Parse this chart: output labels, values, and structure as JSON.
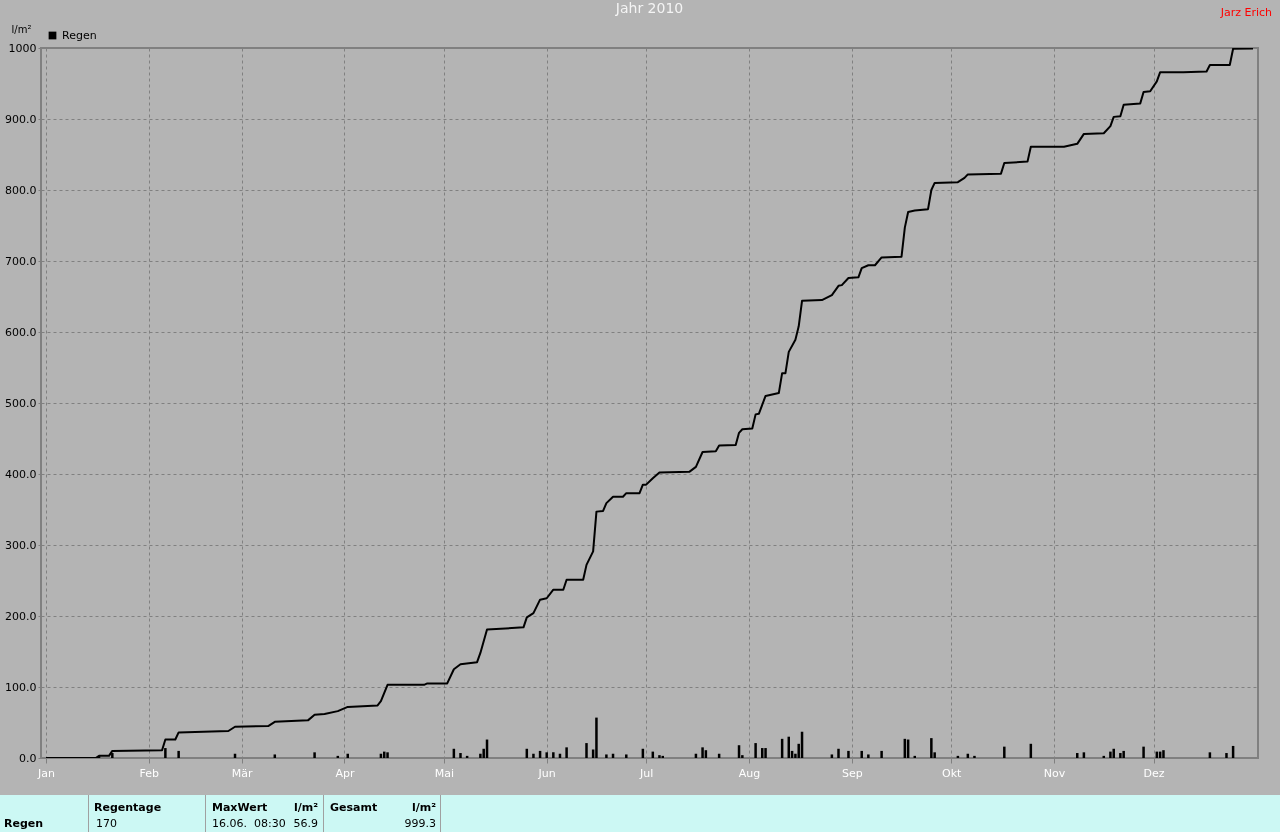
{
  "chart_data": {
    "type": "line",
    "title": "Jahr 2010",
    "ylabel": "l/m²",
    "xlim": [
      "2010-01-01",
      "2010-12-31"
    ],
    "ylim": [
      0,
      1000
    ],
    "xticks": [
      {
        "value": "2010-01-01",
        "label": "Jan"
      },
      {
        "value": "2010-02-01",
        "label": "Feb"
      },
      {
        "value": "2010-03-01",
        "label": "Mär"
      },
      {
        "value": "2010-04-01",
        "label": "Apr"
      },
      {
        "value": "2010-05-01",
        "label": "Mai"
      },
      {
        "value": "2010-06-01",
        "label": "Jun"
      },
      {
        "value": "2010-07-01",
        "label": "Jul"
      },
      {
        "value": "2010-08-01",
        "label": "Aug"
      },
      {
        "value": "2010-09-01",
        "label": "Sep"
      },
      {
        "value": "2010-10-01",
        "label": "Okt"
      },
      {
        "value": "2010-11-01",
        "label": "Nov"
      },
      {
        "value": "2010-12-01",
        "label": "Dez"
      }
    ],
    "yticks": [
      {
        "value": 0,
        "label": "0.0"
      },
      {
        "value": 100,
        "label": "100.0"
      },
      {
        "value": 200,
        "label": "200.0"
      },
      {
        "value": 300,
        "label": "300.0"
      },
      {
        "value": 400,
        "label": "400.0"
      },
      {
        "value": 500,
        "label": "500.0"
      },
      {
        "value": 600,
        "label": "600.0"
      },
      {
        "value": 700,
        "label": "700.0"
      },
      {
        "value": 800,
        "label": "800.0"
      },
      {
        "value": 900,
        "label": "900.0"
      },
      1000
    ],
    "grid": true,
    "legend": "top left",
    "series": [
      {
        "name": "Regen",
        "type": "bar",
        "color": "#000000",
        "x": [
          "2010-01-17",
          "2010-01-21",
          "2010-02-06",
          "2010-02-10",
          "2010-02-27",
          "2010-03-11",
          "2010-03-23",
          "2010-03-30",
          "2010-04-02",
          "2010-04-12",
          "2010-04-13",
          "2010-04-14",
          "2010-05-04",
          "2010-05-06",
          "2010-05-08",
          "2010-05-12",
          "2010-05-13",
          "2010-05-14",
          "2010-05-26",
          "2010-05-28",
          "2010-05-30",
          "2010-06-01",
          "2010-06-03",
          "2010-06-05",
          "2010-06-07",
          "2010-06-13",
          "2010-06-15",
          "2010-06-16",
          "2010-06-19",
          "2010-06-21",
          "2010-06-25",
          "2010-06-30",
          "2010-07-03",
          "2010-07-05",
          "2010-07-06",
          "2010-07-16",
          "2010-07-18",
          "2010-07-19",
          "2010-07-23",
          "2010-07-29",
          "2010-07-30",
          "2010-08-03",
          "2010-08-05",
          "2010-08-06",
          "2010-08-11",
          "2010-08-13",
          "2010-08-14",
          "2010-08-15",
          "2010-08-16",
          "2010-08-17",
          "2010-08-26",
          "2010-08-28",
          "2010-08-31",
          "2010-09-04",
          "2010-09-06",
          "2010-09-10",
          "2010-09-17",
          "2010-09-18",
          "2010-09-20",
          "2010-09-25",
          "2010-09-26",
          "2010-10-03",
          "2010-10-06",
          "2010-10-08",
          "2010-10-17",
          "2010-10-25",
          "2010-11-08",
          "2010-11-10",
          "2010-11-16",
          "2010-11-18",
          "2010-11-19",
          "2010-11-21",
          "2010-11-22",
          "2010-11-28",
          "2010-12-02",
          "2010-12-03",
          "2010-12-04",
          "2010-12-18",
          "2010-12-23",
          "2010-12-25"
        ],
        "values": [
          3,
          7,
          14,
          10,
          6,
          5,
          8,
          3,
          6,
          6,
          9,
          8,
          13,
          7,
          3,
          6,
          13,
          26,
          13,
          6,
          10,
          8,
          8,
          6,
          15,
          21,
          12,
          56.9,
          5,
          6,
          5,
          13,
          9,
          4,
          3,
          6,
          15,
          11,
          6,
          18,
          4,
          21,
          14,
          14,
          27,
          30,
          10,
          6,
          20,
          37,
          5,
          13,
          10,
          10,
          5,
          10,
          27,
          26,
          3,
          28,
          8,
          3,
          6,
          3,
          16,
          20,
          7,
          8,
          3,
          9,
          13,
          7,
          10,
          16,
          9,
          9,
          11,
          8,
          7,
          17
        ]
      },
      {
        "color": "#000000",
        "x": [
          "2010-01-01",
          "2010-01-16",
          "2010-01-17",
          "2010-01-20",
          "2010-01-21",
          "2010-02-05",
          "2010-02-06",
          "2010-02-09",
          "2010-02-10",
          "2010-02-25",
          "2010-02-27",
          "2010-03-09",
          "2010-03-11",
          "2010-03-21",
          "2010-03-23",
          "2010-03-26",
          "2010-03-30",
          "2010-04-02",
          "2010-04-11",
          "2010-04-12",
          "2010-04-14",
          "2010-04-25",
          "2010-04-26",
          "2010-05-02",
          "2010-05-04",
          "2010-05-06",
          "2010-05-11",
          "2010-05-12",
          "2010-05-14",
          "2010-05-25",
          "2010-05-26",
          "2010-05-28",
          "2010-05-30",
          "2010-06-01",
          "2010-06-03",
          "2010-06-06",
          "2010-06-07",
          "2010-06-12",
          "2010-06-13",
          "2010-06-15",
          "2010-06-16",
          "2010-06-18",
          "2010-06-19",
          "2010-06-21",
          "2010-06-24",
          "2010-06-25",
          "2010-06-29",
          "2010-06-30",
          "2010-07-01",
          "2010-07-03",
          "2010-07-05",
          "2010-07-14",
          "2010-07-16",
          "2010-07-18",
          "2010-07-22",
          "2010-07-23",
          "2010-07-28",
          "2010-07-29",
          "2010-07-30",
          "2010-08-02",
          "2010-08-03",
          "2010-08-04",
          "2010-08-06",
          "2010-08-10",
          "2010-08-11",
          "2010-08-12",
          "2010-08-13",
          "2010-08-15",
          "2010-08-16",
          "2010-08-17",
          "2010-08-23",
          "2010-08-26",
          "2010-08-28",
          "2010-08-29",
          "2010-08-31",
          "2010-09-03",
          "2010-09-04",
          "2010-09-06",
          "2010-09-08",
          "2010-09-10",
          "2010-09-16",
          "2010-09-17",
          "2010-09-18",
          "2010-09-20",
          "2010-09-24",
          "2010-09-25",
          "2010-09-26",
          "2010-10-03",
          "2010-10-05",
          "2010-10-06",
          "2010-10-16",
          "2010-10-17",
          "2010-10-24",
          "2010-10-25",
          "2010-11-04",
          "2010-11-08",
          "2010-11-10",
          "2010-11-16",
          "2010-11-18",
          "2010-11-19",
          "2010-11-21",
          "2010-11-22",
          "2010-11-27",
          "2010-11-28",
          "2010-11-30",
          "2010-12-02",
          "2010-12-03",
          "2010-12-10",
          "2010-12-17",
          "2010-12-18",
          "2010-12-24",
          "2010-12-25",
          "2010-12-31"
        ],
        "values": [
          0,
          0,
          3,
          3,
          10,
          11,
          26,
          26,
          36,
          38,
          44,
          45,
          51,
          53,
          61,
          62,
          66,
          72,
          74,
          80,
          103,
          103,
          105,
          105,
          125,
          132,
          135,
          148,
          181,
          184,
          198,
          204,
          223,
          225,
          237,
          237,
          251,
          251,
          272,
          291,
          347,
          348,
          359,
          368,
          368,
          373,
          373,
          385,
          385,
          394,
          402,
          403,
          410,
          431,
          432,
          440,
          441,
          458,
          463,
          464,
          484,
          485,
          510,
          514,
          542,
          542,
          572,
          589,
          608,
          644,
          645,
          652,
          665,
          666,
          676,
          677,
          690,
          694,
          694,
          705,
          706,
          747,
          769,
          771,
          773,
          800,
          810,
          811,
          817,
          822,
          823,
          838,
          840,
          861,
          861,
          865,
          879,
          880,
          890,
          903,
          904,
          920,
          922,
          938,
          939,
          953,
          966,
          966,
          967,
          976,
          976,
          999,
          999.3
        ]
      }
    ],
    "annotations": [
      "Jarz Erich",
      "Regen",
      "Regentage",
      "170",
      "MaxWert",
      "l/m²",
      "16.06.  08:30",
      "56.9",
      "Gesamt",
      "l/m²",
      "999.3"
    ]
  }
}
